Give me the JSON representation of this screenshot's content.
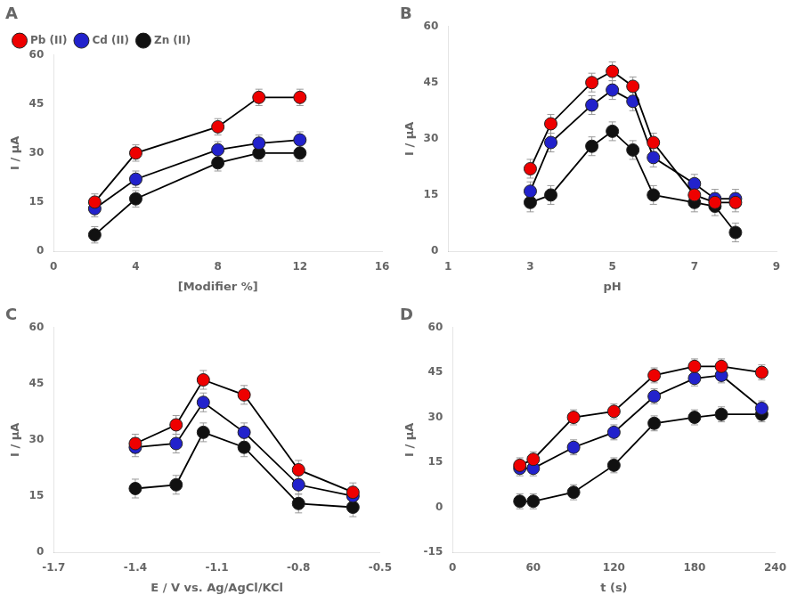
{
  "chart_data": [
    {
      "type": "line",
      "title": "A",
      "x_label": "[Modifier %]",
      "y_label": "I / μA",
      "xlim": [
        0,
        16
      ],
      "ylim": [
        0,
        60
      ],
      "xticks": [
        0,
        4,
        8,
        12,
        16
      ],
      "yticks": [
        0,
        15,
        30,
        45,
        60
      ],
      "grid": false,
      "legend": "upper left",
      "series": [
        {
          "name": "Pb (II)",
          "color": "#EE0000",
          "marker": "circle",
          "x": [
            2,
            4,
            8,
            10,
            12
          ],
          "values": [
            15,
            30,
            38,
            47,
            47
          ],
          "yerr": [
            2.5,
            2.5,
            2.5,
            2.5,
            2.5
          ]
        },
        {
          "name": "Cd (II)",
          "color": "#2222CC",
          "marker": "circle",
          "x": [
            2,
            4,
            8,
            10,
            12
          ],
          "values": [
            13,
            22,
            31,
            33,
            34
          ],
          "yerr": [
            2.5,
            2.5,
            2.5,
            2.5,
            2.5
          ]
        },
        {
          "name": "Zn (II)",
          "color": "#111111",
          "marker": "circle",
          "x": [
            2,
            4,
            8,
            10,
            12
          ],
          "values": [
            5,
            16,
            27,
            30,
            30
          ],
          "yerr": [
            2.5,
            2.5,
            2.5,
            2.5,
            2.5
          ]
        }
      ]
    },
    {
      "type": "line",
      "title": "B",
      "x_label": "pH",
      "y_label": "I / μA",
      "xlim": [
        1,
        9
      ],
      "ylim": [
        0,
        60
      ],
      "xticks": [
        1,
        3,
        5,
        7,
        9
      ],
      "yticks": [
        0,
        15,
        30,
        45,
        60
      ],
      "grid": false,
      "series": [
        {
          "color": "#EE0000",
          "marker": "circle",
          "x": [
            3,
            3.5,
            4.5,
            5,
            5.5,
            6,
            7,
            7.5,
            8
          ],
          "values": [
            22,
            34,
            45,
            48,
            44,
            29,
            15,
            13,
            13
          ],
          "yerr": [
            2.5,
            2.5,
            2.5,
            2.5,
            2.5,
            2.5,
            2.5,
            2.5,
            2.5
          ]
        },
        {
          "color": "#2222CC",
          "marker": "circle",
          "x": [
            3,
            3.5,
            4.5,
            5,
            5.5,
            6,
            7,
            7.5,
            8
          ],
          "values": [
            16,
            29,
            39,
            43,
            40,
            25,
            18,
            14,
            14
          ],
          "yerr": [
            2.5,
            2.5,
            2.5,
            2.5,
            2.5,
            2.5,
            2.5,
            2.5,
            2.5
          ]
        },
        {
          "color": "#111111",
          "marker": "circle",
          "x": [
            3,
            3.5,
            4.5,
            5,
            5.5,
            6,
            7,
            7.5,
            8
          ],
          "values": [
            13,
            15,
            28,
            32,
            27,
            15,
            13,
            12,
            5
          ],
          "yerr": [
            2.5,
            2.5,
            2.5,
            2.5,
            2.5,
            2.5,
            2.5,
            2.5,
            2.5
          ]
        }
      ]
    },
    {
      "type": "line",
      "title": "C",
      "x_label": "E / V vs. Ag/AgCl/KCl",
      "y_label": "I / μA",
      "xlim": [
        -1.7,
        -0.5
      ],
      "ylim": [
        0,
        60
      ],
      "xticks": [
        -1.7,
        -1.4,
        -1.1,
        -0.8,
        -0.5
      ],
      "yticks": [
        0,
        15,
        30,
        45,
        60
      ],
      "grid": false,
      "series": [
        {
          "color": "#EE0000",
          "marker": "circle",
          "x": [
            -1.4,
            -1.25,
            -1.15,
            -1.0,
            -0.8,
            -0.6
          ],
          "values": [
            29,
            34,
            46,
            42,
            22,
            16
          ],
          "yerr": [
            2.5,
            2.5,
            2.5,
            2.5,
            2.5,
            2.5
          ]
        },
        {
          "color": "#2222CC",
          "marker": "circle",
          "x": [
            -1.4,
            -1.25,
            -1.15,
            -1.0,
            -0.8,
            -0.6
          ],
          "values": [
            28,
            29,
            40,
            32,
            18,
            15
          ],
          "yerr": [
            2.5,
            2.5,
            2.5,
            2.5,
            2.5,
            2.5
          ]
        },
        {
          "color": "#111111",
          "marker": "circle",
          "x": [
            -1.4,
            -1.25,
            -1.15,
            -1.0,
            -0.8,
            -0.6
          ],
          "values": [
            17,
            18,
            32,
            28,
            13,
            12
          ],
          "yerr": [
            2.5,
            2.5,
            2.5,
            2.5,
            2.5,
            2.5
          ]
        }
      ]
    },
    {
      "type": "line",
      "title": "D",
      "x_label": "t (s)",
      "y_label": "I / μA",
      "xlim": [
        0,
        240
      ],
      "ylim": [
        -15,
        60
      ],
      "xticks": [
        0,
        60,
        120,
        180,
        240
      ],
      "yticks": [
        -15,
        0,
        15,
        30,
        45,
        60
      ],
      "grid": false,
      "series": [
        {
          "color": "#EE0000",
          "marker": "circle",
          "x": [
            50,
            60,
            90,
            120,
            150,
            180,
            200,
            230
          ],
          "values": [
            14,
            16,
            30,
            32,
            44,
            47,
            47,
            45
          ],
          "yerr": [
            2.5,
            2.5,
            2.5,
            2.5,
            2.5,
            2.5,
            2.5,
            2.5
          ]
        },
        {
          "color": "#2222CC",
          "marker": "circle",
          "x": [
            50,
            60,
            90,
            120,
            150,
            180,
            200,
            230
          ],
          "values": [
            13,
            13,
            20,
            25,
            37,
            43,
            44,
            33
          ],
          "yerr": [
            2.5,
            2.5,
            2.5,
            2.5,
            2.5,
            2.5,
            2.5,
            2.5
          ]
        },
        {
          "color": "#111111",
          "marker": "circle",
          "x": [
            50,
            60,
            90,
            120,
            150,
            180,
            200,
            230
          ],
          "values": [
            2,
            2,
            5,
            14,
            28,
            30,
            31,
            31
          ],
          "yerr": [
            2.5,
            2.5,
            2.5,
            2.5,
            2.5,
            2.5,
            2.5,
            2.5
          ]
        }
      ]
    }
  ]
}
